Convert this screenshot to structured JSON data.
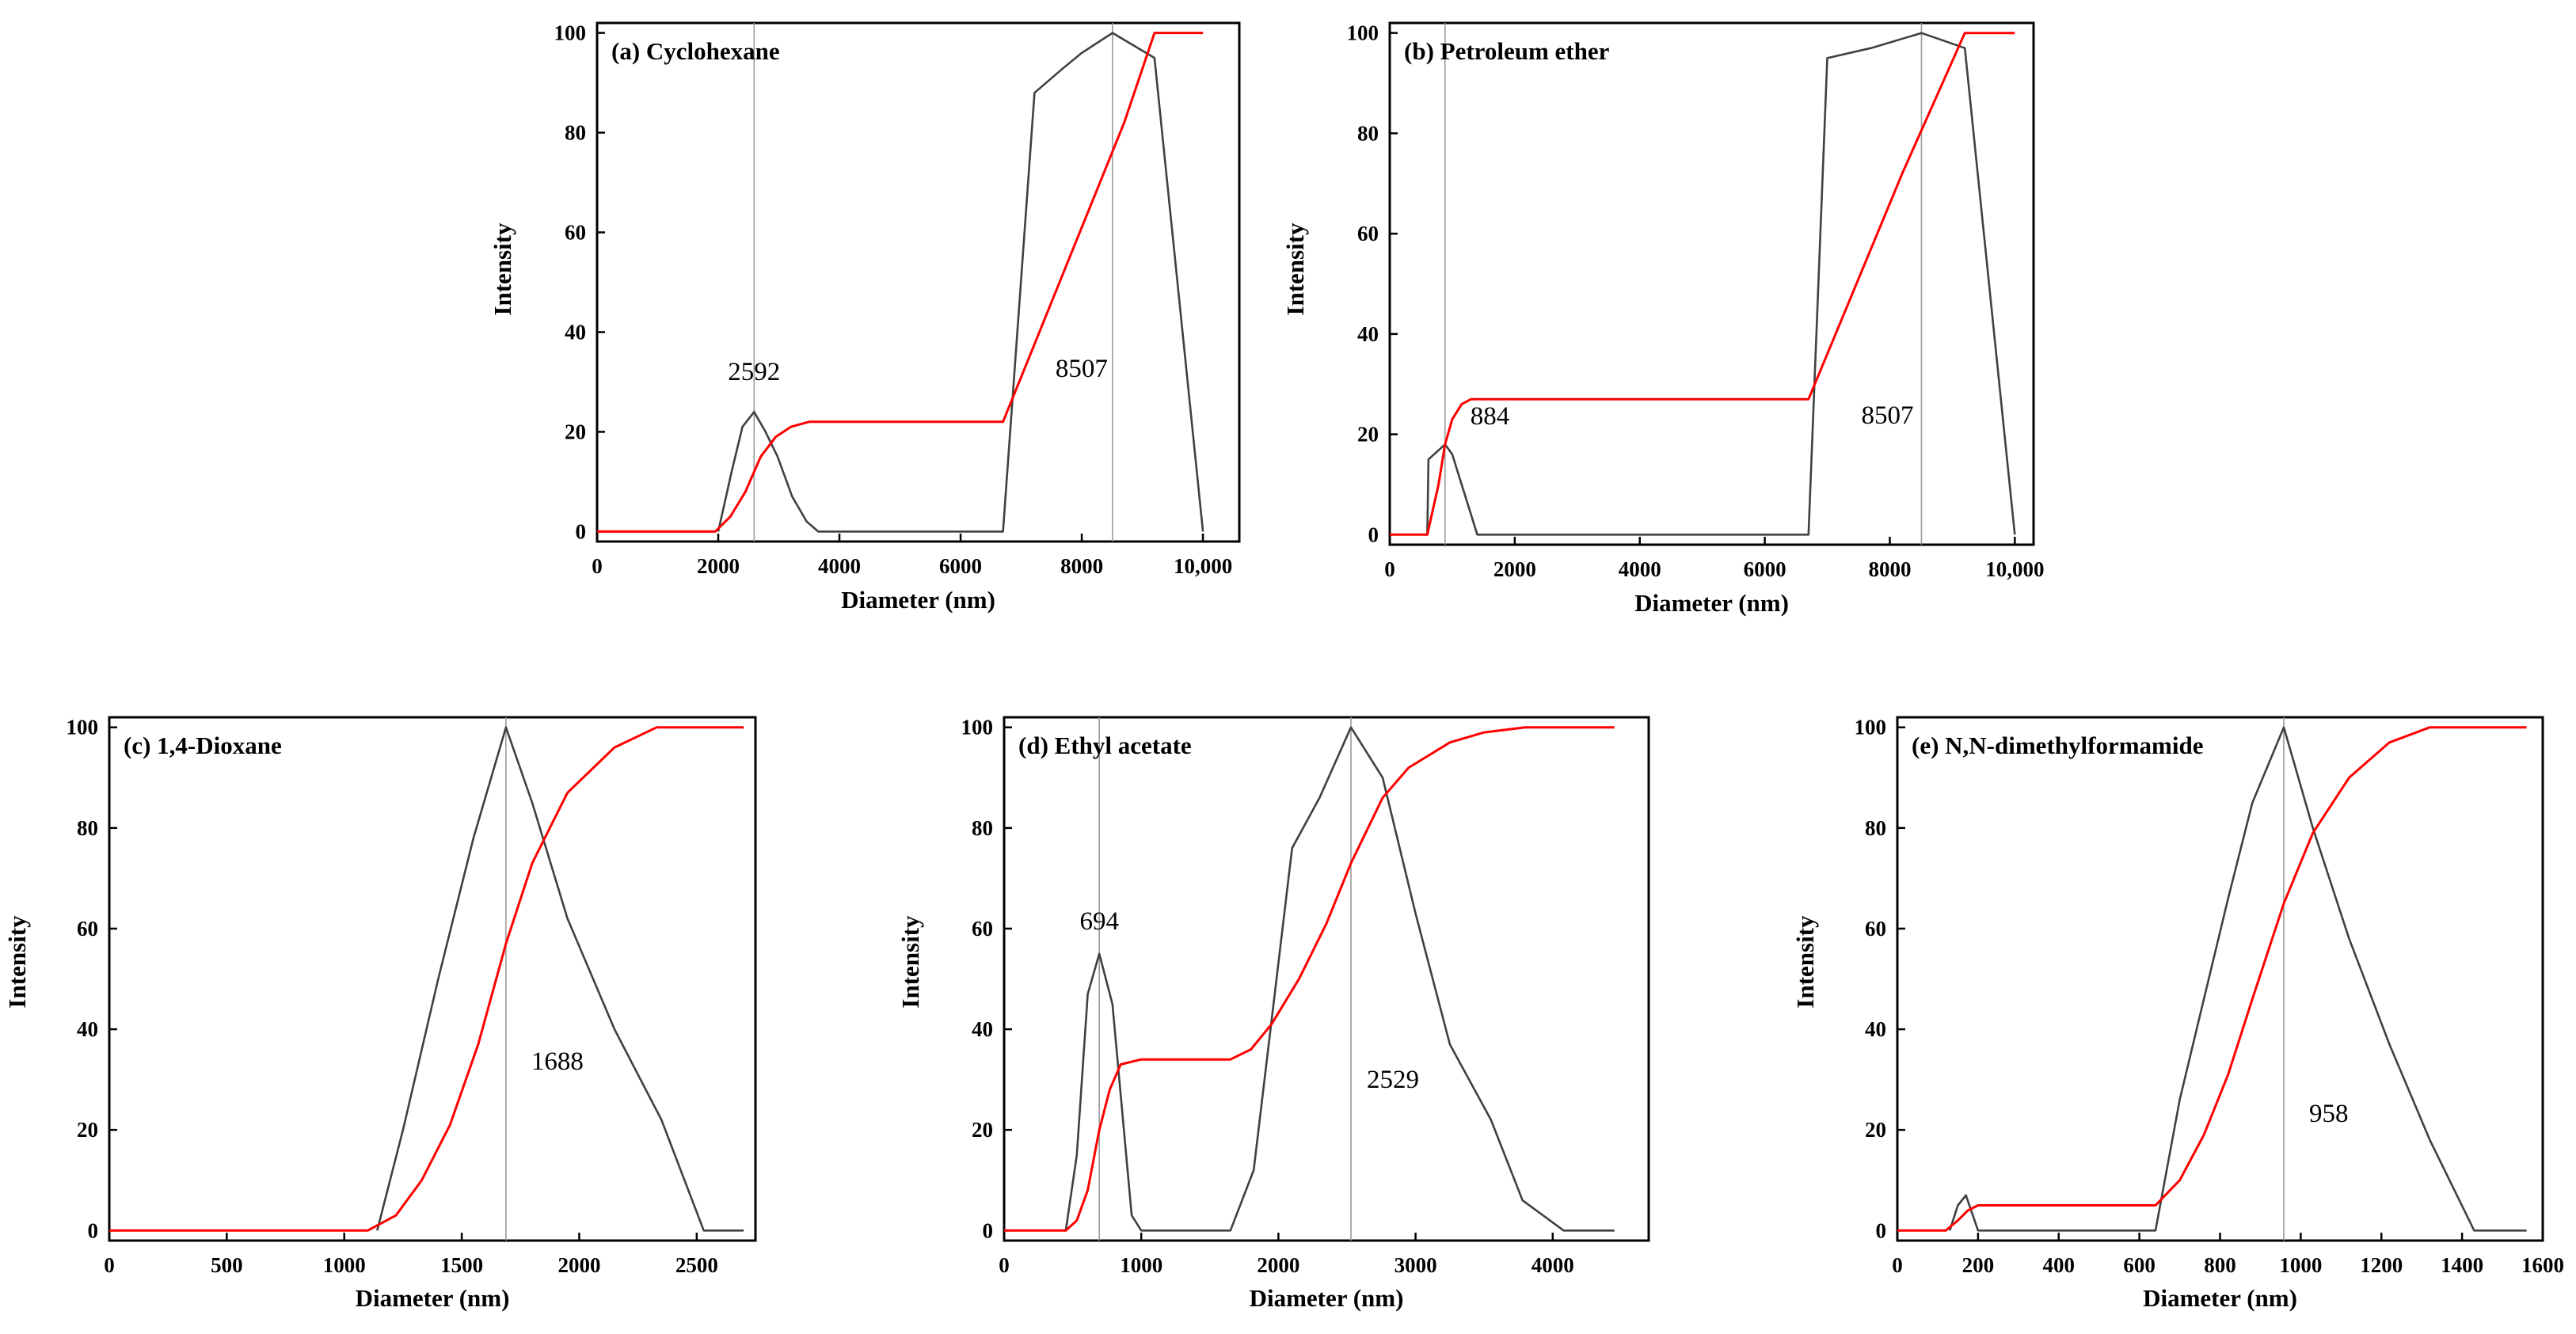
{
  "chart_data": [
    {
      "id": "a",
      "type": "line",
      "title": "(a) Cyclohexane",
      "xlabel": "Diameter (nm)",
      "ylabel": "Intensity",
      "xlim": [
        0,
        10600
      ],
      "ylim": [
        -2,
        102
      ],
      "xticks": [
        0,
        2000,
        4000,
        6000,
        8000,
        10000
      ],
      "xtick_labels": [
        "0",
        "2000",
        "4000",
        "6000",
        "8000",
        "10,000"
      ],
      "yticks": [
        0,
        20,
        40,
        60,
        80,
        100
      ],
      "ytick_labels": [
        "0",
        "20",
        "40",
        "60",
        "80",
        "100"
      ],
      "series": [
        {
          "name": "intensity",
          "color": "#404040",
          "x": [
            2000,
            2220,
            2400,
            2592,
            2780,
            2980,
            3220,
            3460,
            3650,
            6700,
            7220,
            7700,
            8000,
            8507,
            9200,
            10000
          ],
          "y": [
            0,
            12,
            21,
            24,
            20,
            15,
            7,
            2,
            0,
            0,
            88,
            93,
            96,
            100,
            95,
            0
          ]
        },
        {
          "name": "cumulative",
          "color": "#ff0000",
          "x": [
            0,
            1950,
            2200,
            2450,
            2700,
            2950,
            3200,
            3500,
            3800,
            6700,
            7200,
            7700,
            8200,
            8700,
            9200,
            10000
          ],
          "y": [
            0,
            0,
            3,
            8,
            15,
            19,
            21,
            22,
            22,
            22,
            37,
            52,
            67,
            82,
            100,
            100
          ]
        }
      ],
      "markers": [
        {
          "x": 2592,
          "label": "2592"
        },
        {
          "x": 8507,
          "label": "8507"
        }
      ]
    },
    {
      "id": "b",
      "type": "line",
      "title": "(b) Petroleum ether",
      "xlabel": "Diameter (nm)",
      "ylabel": "Intensity",
      "xlim": [
        0,
        10300
      ],
      "ylim": [
        -2,
        102
      ],
      "xticks": [
        0,
        2000,
        4000,
        6000,
        8000,
        10000
      ],
      "xtick_labels": [
        "0",
        "2000",
        "4000",
        "6000",
        "8000",
        "10,000"
      ],
      "yticks": [
        0,
        20,
        40,
        60,
        80,
        100
      ],
      "ytick_labels": [
        "0",
        "20",
        "40",
        "60",
        "80",
        "100"
      ],
      "series": [
        {
          "name": "intensity",
          "color": "#404040",
          "x": [
            600,
            620,
            884,
            1000,
            1150,
            1400,
            6700,
            7000,
            7700,
            8507,
            9200,
            10000
          ],
          "y": [
            0,
            15,
            18,
            16,
            10,
            0,
            0,
            95,
            97,
            100,
            97,
            0
          ]
        },
        {
          "name": "cumulative",
          "color": "#ff0000",
          "x": [
            0,
            600,
            780,
            884,
            1000,
            1150,
            1300,
            6700,
            7200,
            7700,
            8200,
            8700,
            9200,
            10000
          ],
          "y": [
            0,
            0,
            10,
            18,
            23,
            26,
            27,
            27,
            42,
            57,
            72,
            86,
            100,
            100
          ]
        }
      ],
      "markers": [
        {
          "x": 884,
          "label": "884"
        },
        {
          "x": 8507,
          "label": "8507"
        }
      ]
    },
    {
      "id": "c",
      "type": "line",
      "title": "(c) 1,4-Dioxane",
      "xlabel": "Diameter (nm)",
      "ylabel": "Intensity",
      "xlim": [
        0,
        2750
      ],
      "ylim": [
        -2,
        102
      ],
      "xticks": [
        0,
        500,
        1000,
        1500,
        2000,
        2500
      ],
      "xtick_labels": [
        "0",
        "500",
        "1000",
        "1500",
        "2000",
        "2500"
      ],
      "yticks": [
        0,
        20,
        40,
        60,
        80,
        100
      ],
      "ytick_labels": [
        "0",
        "20",
        "40",
        "60",
        "80",
        "100"
      ],
      "series": [
        {
          "name": "intensity",
          "color": "#404040",
          "x": [
            1140,
            1250,
            1400,
            1550,
            1688,
            1800,
            1950,
            2150,
            2350,
            2530,
            2700
          ],
          "y": [
            0,
            20,
            50,
            78,
            100,
            85,
            62,
            40,
            22,
            0,
            0
          ]
        },
        {
          "name": "cumulative",
          "color": "#ff0000",
          "x": [
            0,
            1100,
            1220,
            1330,
            1450,
            1570,
            1688,
            1800,
            1950,
            2150,
            2330,
            2700
          ],
          "y": [
            0,
            0,
            3,
            10,
            21,
            37,
            57,
            73,
            87,
            96,
            100,
            100
          ]
        }
      ],
      "markers": [
        {
          "x": 1688,
          "label": "1688"
        }
      ]
    },
    {
      "id": "d",
      "type": "line",
      "title": "(d) Ethyl acetate",
      "xlabel": "Diameter (nm)",
      "ylabel": "Intensity",
      "xlim": [
        0,
        4700
      ],
      "ylim": [
        -2,
        102
      ],
      "xticks": [
        0,
        1000,
        2000,
        3000,
        4000
      ],
      "xtick_labels": [
        "0",
        "1000",
        "2000",
        "3000",
        "4000"
      ],
      "yticks": [
        0,
        20,
        40,
        60,
        80,
        100
      ],
      "ytick_labels": [
        "0",
        "20",
        "40",
        "60",
        "80",
        "100"
      ],
      "series": [
        {
          "name": "intensity",
          "color": "#404040",
          "x": [
            450,
            530,
            610,
            694,
            790,
            930,
            1000,
            1650,
            1820,
            2100,
            2300,
            2529,
            2760,
            3000,
            3250,
            3550,
            3780,
            4080,
            4450
          ],
          "y": [
            0,
            15,
            47,
            55,
            45,
            3,
            0,
            0,
            12,
            76,
            86,
            100,
            90,
            63,
            37,
            22,
            6,
            0,
            0
          ]
        },
        {
          "name": "cumulative",
          "color": "#ff0000",
          "x": [
            0,
            450,
            530,
            610,
            694,
            770,
            850,
            1000,
            1650,
            1800,
            1950,
            2150,
            2350,
            2529,
            2760,
            2950,
            3250,
            3500,
            3800,
            4450
          ],
          "y": [
            0,
            0,
            2,
            8,
            20,
            28,
            33,
            34,
            34,
            36,
            41,
            50,
            61,
            73,
            86,
            92,
            97,
            99,
            100,
            100
          ]
        }
      ],
      "markers": [
        {
          "x": 694,
          "label": "694"
        },
        {
          "x": 2529,
          "label": "2529"
        }
      ]
    },
    {
      "id": "e",
      "type": "line",
      "title": "(e) N,N-dimethylformamide",
      "xlabel": "Diameter (nm)",
      "ylabel": "Intensity",
      "xlim": [
        0,
        1600
      ],
      "ylim": [
        -2,
        102
      ],
      "xticks": [
        0,
        200,
        400,
        600,
        800,
        1000,
        1200,
        1400,
        1600
      ],
      "xtick_labels": [
        "0",
        "200",
        "400",
        "600",
        "800",
        "1000",
        "1200",
        "1400",
        "1600"
      ],
      "yticks": [
        0,
        20,
        40,
        60,
        80,
        100
      ],
      "ytick_labels": [
        "0",
        "20",
        "40",
        "60",
        "80",
        "100"
      ],
      "series": [
        {
          "name": "intensity",
          "color": "#404040",
          "x": [
            130,
            150,
            170,
            200,
            640,
            700,
            760,
            820,
            880,
            958,
            1030,
            1120,
            1220,
            1320,
            1430,
            1560
          ],
          "y": [
            0,
            5,
            7,
            0,
            0,
            26,
            46,
            66,
            85,
            100,
            80,
            58,
            37,
            18,
            0,
            0
          ]
        },
        {
          "name": "cumulative",
          "color": "#ff0000",
          "x": [
            0,
            120,
            150,
            175,
            200,
            640,
            700,
            760,
            820,
            880,
            958,
            1030,
            1120,
            1220,
            1320,
            1560
          ],
          "y": [
            0,
            0,
            2,
            4,
            5,
            5,
            10,
            19,
            31,
            46,
            65,
            79,
            90,
            97,
            100,
            100
          ]
        }
      ],
      "markers": [
        {
          "x": 958,
          "label": "958"
        }
      ]
    }
  ]
}
